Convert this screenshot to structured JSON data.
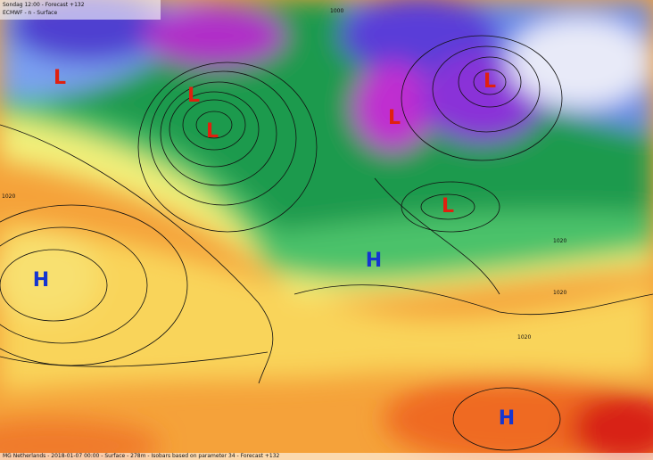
{
  "header": {
    "line1": "Sondag 12:00 - Forecast +132",
    "line2": "ECMWF - n - Surface"
  },
  "pressure_centers": [
    {
      "label": "L"
    },
    {
      "label": "L"
    },
    {
      "label": "L"
    },
    {
      "label": "L"
    },
    {
      "label": "L"
    },
    {
      "label": "L"
    },
    {
      "label": "H"
    },
    {
      "label": "H"
    },
    {
      "label": "H"
    }
  ],
  "isobar_labels": [
    "1000",
    "1020",
    "1020",
    "1020",
    "1020"
  ],
  "footer": "MG Netherlands - 2018-01-07 00:00 - Surface - 278m - Isobars based on parameter 34 - Forecast +132"
}
